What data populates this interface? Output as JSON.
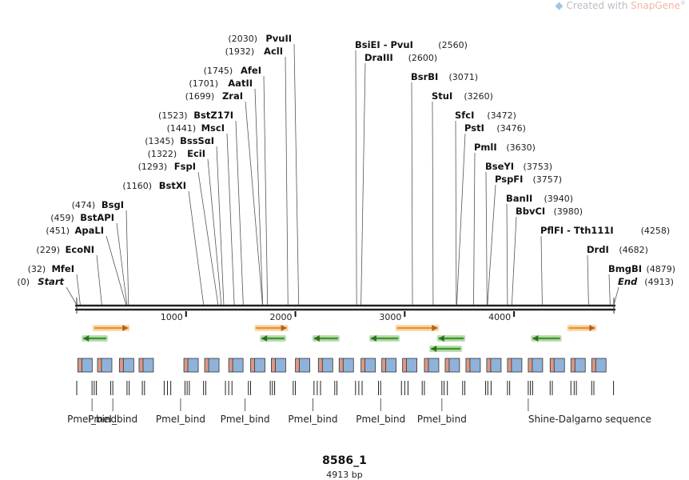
{
  "watermark": {
    "prefix": "Created with ",
    "brand": "SnapGene",
    "mark": "®"
  },
  "map": {
    "name": "8586_1",
    "length_label": "4913 bp",
    "length_bp": 4913,
    "scale_ticks": [
      {
        "bp": 1000,
        "label": "1000"
      },
      {
        "bp": 2000,
        "label": "2000"
      },
      {
        "bp": 3000,
        "label": "3000"
      },
      {
        "bp": 4000,
        "label": "4000"
      }
    ]
  },
  "enzymes_left": [
    {
      "pos": "(2030)",
      "name": "PvuII",
      "bp": 2030
    },
    {
      "pos": "(1932)",
      "name": "AclI",
      "bp": 1932
    },
    {
      "pos": "(1745)",
      "name": "AfeI",
      "bp": 1745
    },
    {
      "pos": "(1701)",
      "name": "AatII",
      "bp": 1701
    },
    {
      "pos": "(1699)",
      "name": "ZraI",
      "bp": 1699
    },
    {
      "pos": "(1523)",
      "name": "BstZ17I",
      "bp": 1523
    },
    {
      "pos": "(1441)",
      "name": "MscI",
      "bp": 1441
    },
    {
      "pos": "(1345)",
      "name": "BssSαI",
      "bp": 1345
    },
    {
      "pos": "(1322)",
      "name": "EciI",
      "bp": 1322
    },
    {
      "pos": "(1293)",
      "name": "FspI",
      "bp": 1293
    },
    {
      "pos": "(1160)",
      "name": "BstXI",
      "bp": 1160
    },
    {
      "pos": "(474)",
      "name": "BsgI",
      "bp": 474
    },
    {
      "pos": "(459)",
      "name": "BstAPI",
      "bp": 459
    },
    {
      "pos": "(451)",
      "name": "ApaLI",
      "bp": 451
    },
    {
      "pos": "(229)",
      "name": "EcoNI",
      "bp": 229
    },
    {
      "pos": "(32)",
      "name": "MfeI",
      "bp": 32
    },
    {
      "pos": "(0)",
      "name": "Start",
      "bp": 0,
      "italic": true
    }
  ],
  "enzymes_right": [
    {
      "name": "BsiEI  - PvuI",
      "pos": "(2560)",
      "bp": 2560
    },
    {
      "name": "DraIII",
      "pos": "(2600)",
      "bp": 2600
    },
    {
      "name": "BsrBI",
      "pos": "(3071)",
      "bp": 3071
    },
    {
      "name": "StuI",
      "pos": "(3260)",
      "bp": 3260
    },
    {
      "name": "SfcI",
      "pos": "(3472)",
      "bp": 3472
    },
    {
      "name": "PstI",
      "pos": "(3476)",
      "bp": 3476
    },
    {
      "name": "PmlI",
      "pos": "(3630)",
      "bp": 3630
    },
    {
      "name": "BseYI",
      "pos": "(3753)",
      "bp": 3753
    },
    {
      "name": "PspFI",
      "pos": "(3757)",
      "bp": 3757
    },
    {
      "name": "BanII",
      "pos": "(3940)",
      "bp": 3940
    },
    {
      "name": "BbvCI",
      "pos": "(3980)",
      "bp": 3980
    },
    {
      "name": "PflFI  - Tth111I",
      "pos": "(4258)",
      "bp": 4258
    },
    {
      "name": "DrdI",
      "pos": "(4682)",
      "bp": 4682
    },
    {
      "name": "BmgBI",
      "pos": "(4879)",
      "bp": 4879
    },
    {
      "name": "End",
      "pos": "(4913)",
      "bp": 4913,
      "italic": true
    }
  ],
  "features_orange_fwd": [
    {
      "start_bp": 160,
      "end_bp": 470
    },
    {
      "start_bp": 1640,
      "end_bp": 1920
    },
    {
      "start_bp": 2930,
      "end_bp": 3300
    },
    {
      "start_bp": 4500,
      "end_bp": 4740
    }
  ],
  "features_green_rev": [
    {
      "start_bp": 60,
      "end_bp": 270
    },
    {
      "start_bp": 1690,
      "end_bp": 1900
    },
    {
      "start_bp": 2170,
      "end_bp": 2390
    },
    {
      "start_bp": 2690,
      "end_bp": 2940
    },
    {
      "start_bp": 3310,
      "end_bp": 3540
    },
    {
      "start_bp": 3240,
      "end_bp": 3510
    },
    {
      "start_bp": 4170,
      "end_bp": 4420
    }
  ],
  "repeat_box_starts_bp": [
    10,
    190,
    390,
    570,
    980,
    1170,
    1390,
    1590,
    1780,
    2000,
    2210,
    2400,
    2600,
    2790,
    2980,
    3180,
    3370,
    3560,
    3750,
    3940,
    4130,
    4330,
    4520,
    4710
  ],
  "bind_ticks_bp": [
    0,
    140,
    160,
    180,
    310,
    330,
    460,
    480,
    600,
    620,
    800,
    830,
    860,
    990,
    1010,
    1030,
    1160,
    1180,
    1360,
    1390,
    1420,
    1570,
    1590,
    1770,
    1790,
    1810,
    1980,
    2000,
    2170,
    2200,
    2230,
    2360,
    2380,
    2550,
    2580,
    2610,
    2760,
    2780,
    2970,
    3000,
    3030,
    3160,
    3180,
    3340,
    3360,
    3390,
    3530,
    3550,
    3740,
    3760,
    3790,
    3940,
    3960,
    4130,
    4150,
    4170,
    4330,
    4350,
    4520,
    4550,
    4570,
    4710,
    4730,
    4910
  ],
  "bind_labels": [
    {
      "text": "PmeI_bind",
      "bp": 140
    },
    {
      "text": "PmeI_bind",
      "bp": 330
    },
    {
      "text": "PmeI_bind",
      "bp": 950
    },
    {
      "text": "PmeI_bind",
      "bp": 1540
    },
    {
      "text": "PmeI_bind",
      "bp": 2160
    },
    {
      "text": "PmeI_bind",
      "bp": 2780
    },
    {
      "text": "PmeI_bind",
      "bp": 3340
    },
    {
      "text": "Shine-Dalgarno sequence",
      "bp": 4130
    }
  ],
  "colors": {
    "feature_orange": "#e8952a",
    "feature_green": "#3f9b2a",
    "box_blue": "#8fb2da",
    "box_salmon": "#e89474",
    "backbone": "#222222"
  }
}
